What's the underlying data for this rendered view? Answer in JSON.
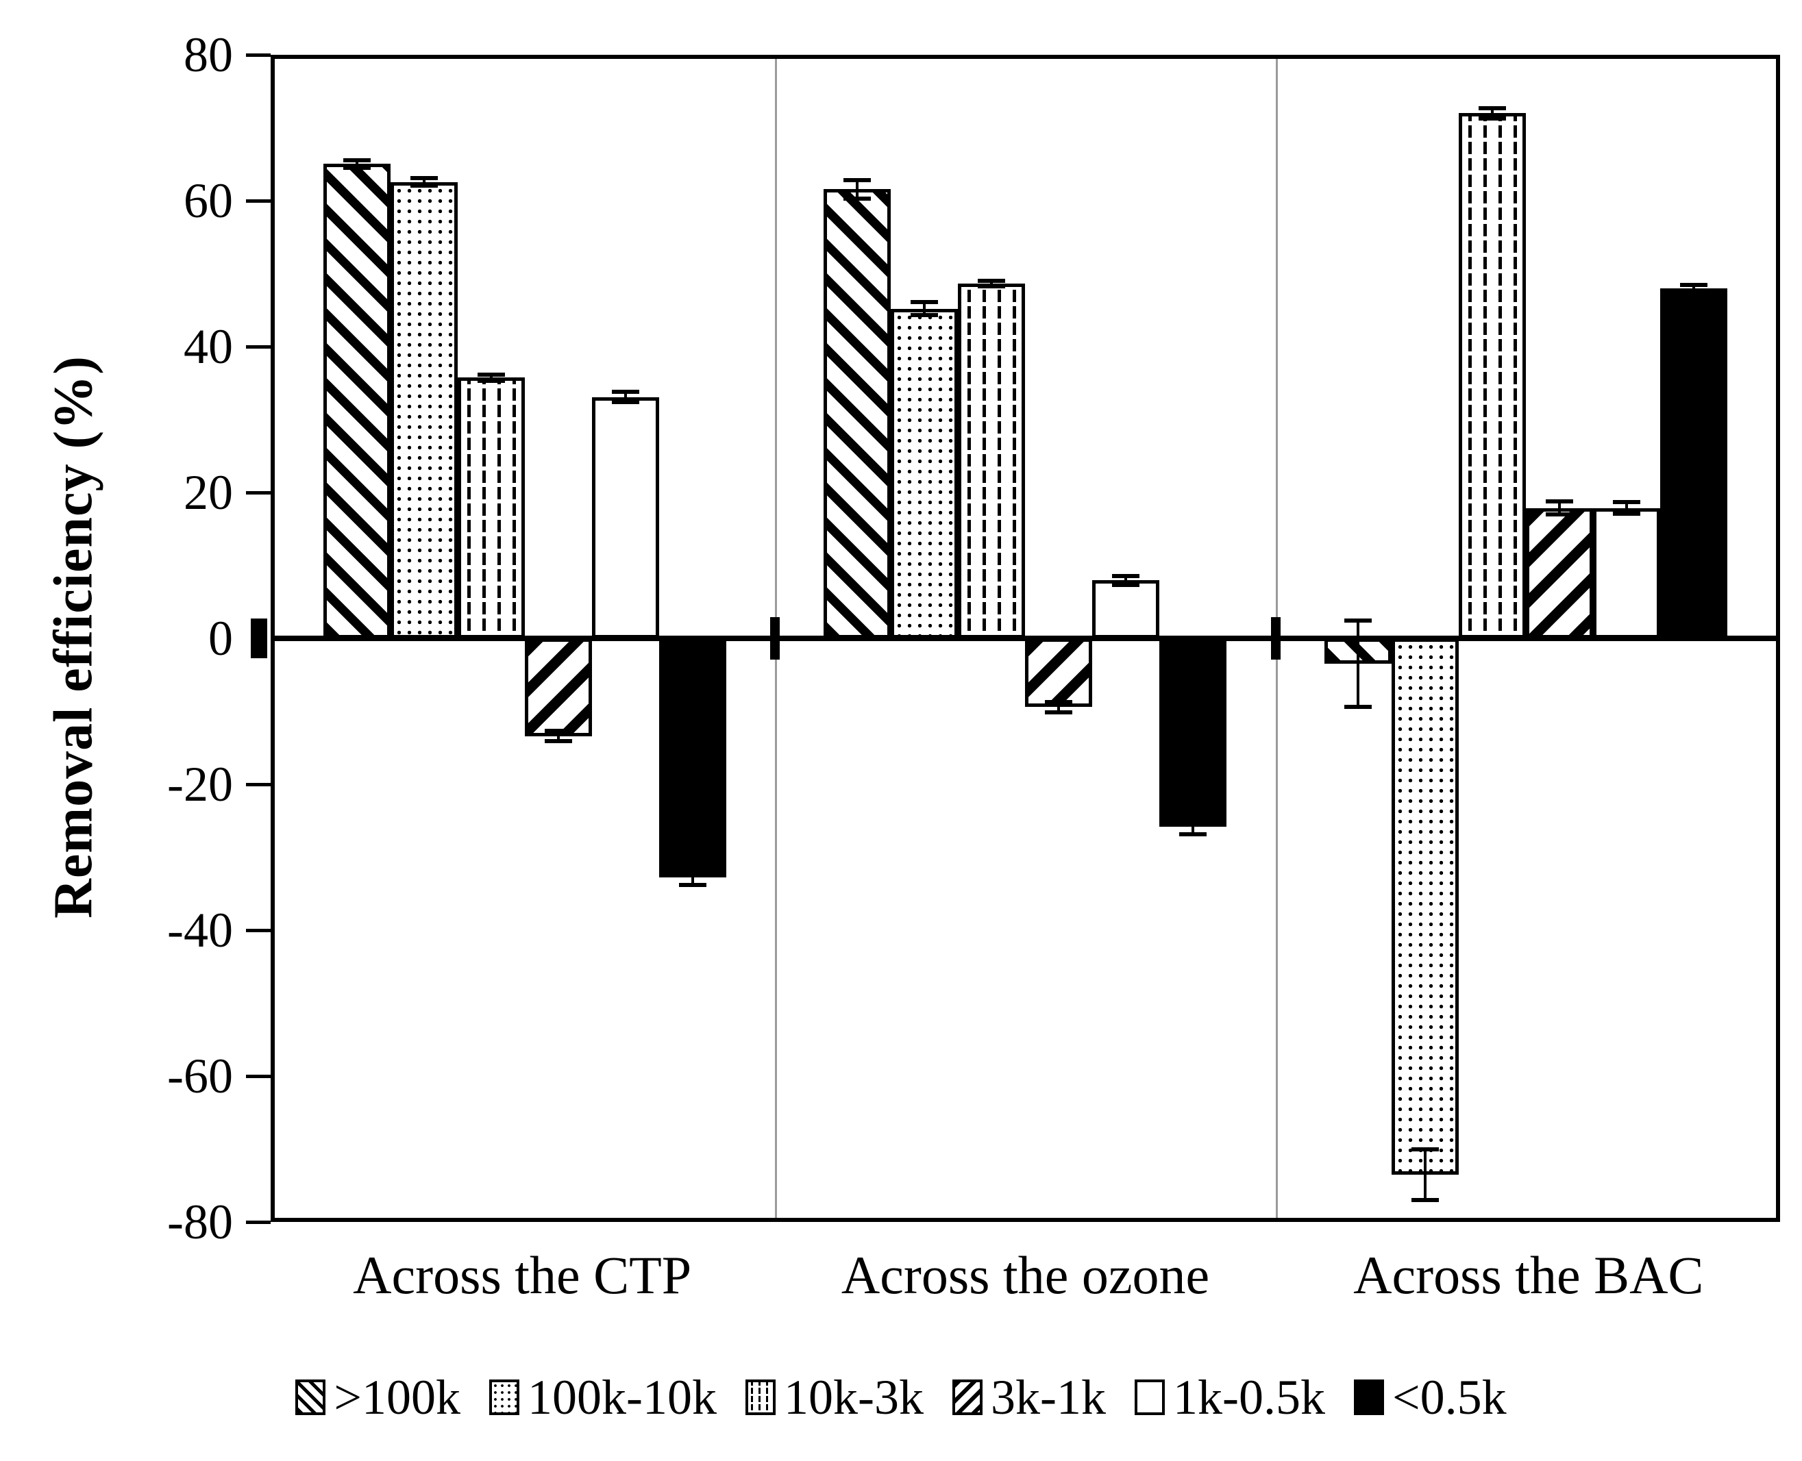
{
  "chart_data": {
    "type": "bar",
    "title": "",
    "ylabel": "Removal efficiency (%)",
    "xlabel": "",
    "ylim": [
      -80,
      80
    ],
    "yticks": [
      80,
      60,
      40,
      20,
      0,
      -20,
      -40,
      -60,
      -80
    ],
    "ytick_labels": [
      "80",
      "60",
      "40",
      "20",
      "0",
      "-20",
      "-40",
      "-60",
      "-80"
    ],
    "grid": false,
    "legend_position": "bottom",
    "categories": [
      "Across the CTP",
      "Across the ozone",
      "Across the BAC"
    ],
    "series": [
      {
        "name": ">100k",
        "pattern": "diagonal-down-hatch",
        "values": [
          65.5,
          62.0,
          -3.5
        ],
        "errors": [
          0.5,
          1.3,
          6.0
        ]
      },
      {
        "name": "100k-10k",
        "pattern": "dots",
        "values": [
          63.0,
          45.5,
          -74.0
        ],
        "errors": [
          0.5,
          0.9,
          3.5
        ]
      },
      {
        "name": "10k-3k",
        "pattern": "vertical-dashes",
        "values": [
          36.0,
          49.0,
          72.5
        ],
        "errors": [
          0.4,
          0.4,
          0.7
        ]
      },
      {
        "name": "3k-1k",
        "pattern": "diagonal-up-hatch",
        "values": [
          -13.5,
          -9.5,
          18.0
        ],
        "errors": [
          0.7,
          0.7,
          0.9
        ]
      },
      {
        "name": "1k-0.5k",
        "pattern": "white",
        "values": [
          33.3,
          8.0,
          18.0
        ],
        "errors": [
          0.7,
          0.6,
          0.8
        ]
      },
      {
        "name": "<0.5k",
        "pattern": "solid-black",
        "values": [
          -33.0,
          -26.0,
          48.3
        ],
        "errors": [
          1.0,
          1.0,
          0.5
        ]
      }
    ],
    "colors": {
      "bar_outline": "#000000",
      "bar_fill_dark": "#000000",
      "bar_fill_light": "#ffffff",
      "separator": "#9b9b9b",
      "background": "#ffffff"
    }
  }
}
